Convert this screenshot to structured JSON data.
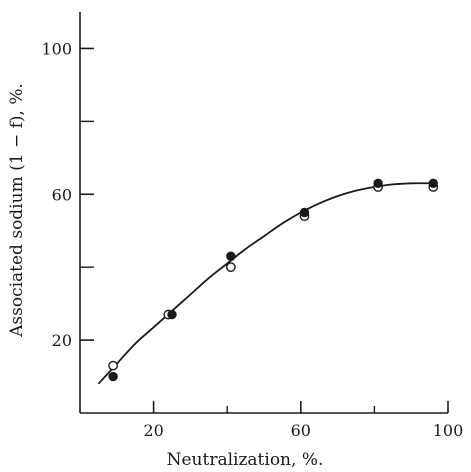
{
  "chart_data": {
    "type": "scatter",
    "title": "",
    "xlabel": "Neutralization, %.",
    "ylabel": "Associated sodium (1 − f), %.",
    "xlim": [
      0,
      100
    ],
    "ylim": [
      0,
      110
    ],
    "x_ticks": [
      20,
      60,
      100
    ],
    "x_minor_ticks": [
      40,
      80
    ],
    "y_ticks": [
      20,
      60,
      100
    ],
    "y_minor_ticks": [
      40,
      80
    ],
    "grid": false,
    "legend": "none",
    "series": [
      {
        "marker": "filled-circle",
        "x": [
          9,
          25,
          41,
          61,
          81,
          96
        ],
        "y": [
          10,
          27,
          43,
          55,
          63,
          63
        ]
      },
      {
        "marker": "open-circle",
        "x": [
          9,
          24,
          41,
          61,
          81,
          96
        ],
        "y": [
          13,
          27,
          40,
          54,
          62,
          62
        ]
      }
    ],
    "fit_curve": {
      "x": [
        5,
        10,
        15,
        20,
        25,
        30,
        35,
        40,
        45,
        50,
        55,
        60,
        65,
        70,
        75,
        80,
        85,
        90,
        95
      ],
      "y": [
        8,
        13.5,
        19,
        23.5,
        28,
        32.5,
        37,
        41,
        45,
        48.5,
        52,
        55,
        57.5,
        59.5,
        61,
        62,
        62.7,
        63,
        63
      ]
    },
    "colors": {
      "ink": "#1a1a1a",
      "background": "#ffffff"
    }
  }
}
